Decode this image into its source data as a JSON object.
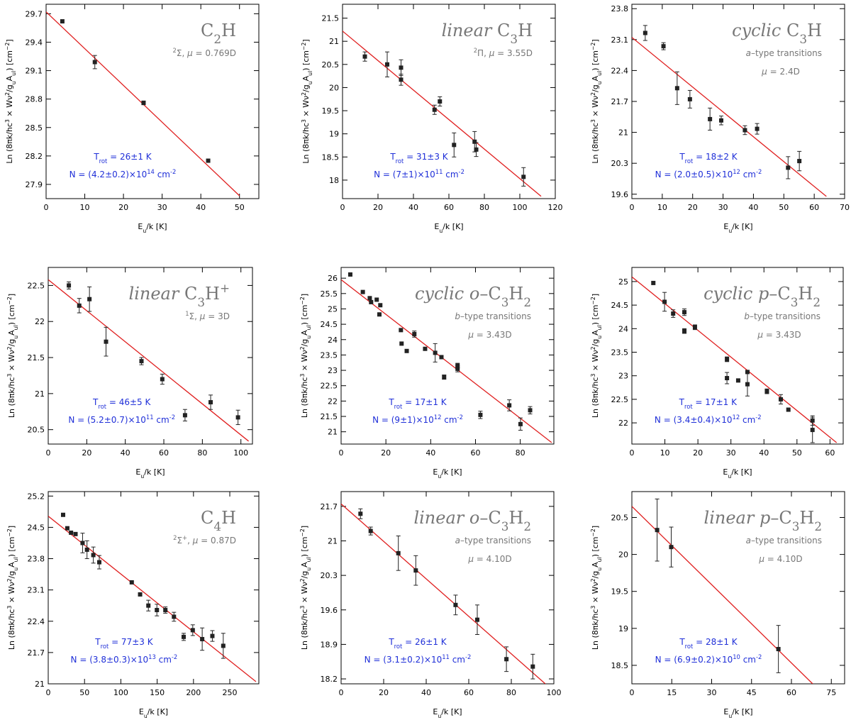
{
  "chart_data": [
    {
      "type": "scatter",
      "title": "C2H",
      "info_lines": [
        "2Σ, μ = 0.769D"
      ],
      "trot": "Trot = 26±1 K",
      "ncol": "N = (4.2±0.2)×10^14 cm^-2",
      "xlabel": "Eu/k [K]",
      "ylabel": "Ln (8πk/hc^3 × Wν^2/(gu Aul)) [cm^-2]",
      "xlim": [
        0,
        55
      ],
      "ylim": [
        27.75,
        29.8
      ],
      "xticks": [
        0,
        10,
        20,
        30,
        40,
        50
      ],
      "yticks": [
        27.9,
        28.2,
        28.5,
        28.8,
        29.1,
        29.4,
        29.7
      ],
      "points": [
        [
          4.2,
          29.62,
          0
        ],
        [
          12.6,
          29.19,
          0.07
        ],
        [
          25.2,
          28.76,
          0.02
        ],
        [
          41.9,
          28.15,
          0
        ]
      ],
      "fit": [
        [
          0,
          29.72
        ],
        [
          50,
          27.78
        ]
      ]
    },
    {
      "type": "scatter",
      "title": "linear C3H",
      "info_lines": [
        "2Π, μ = 3.55D"
      ],
      "trot": "Trot = 31±3 K",
      "ncol": "N = (7±1)×10^11 cm^-2",
      "xlabel": "Eu/k [K]",
      "ylabel": "Ln (8πk/hc^3 × Wν^2/(gu Aul)) [cm^-2]",
      "xlim": [
        0,
        120
      ],
      "ylim": [
        17.6,
        21.8
      ],
      "xticks": [
        0,
        20,
        40,
        60,
        80,
        100,
        120
      ],
      "yticks": [
        18,
        18.5,
        19,
        19.5,
        20,
        20.5,
        21,
        21.5
      ],
      "points": [
        [
          12.6,
          20.67,
          0.1
        ],
        [
          25.2,
          20.5,
          0.27
        ],
        [
          33.0,
          20.43,
          0.17
        ],
        [
          33.0,
          20.17,
          0.12
        ],
        [
          51.9,
          19.52,
          0.1
        ],
        [
          54.9,
          19.7,
          0.1
        ],
        [
          62.9,
          18.76,
          0.26
        ],
        [
          74.5,
          18.83,
          0.22
        ],
        [
          75.4,
          18.66,
          0.15
        ],
        [
          102.1,
          18.07,
          0.2
        ]
      ],
      "fit": [
        [
          0,
          21.22
        ],
        [
          112,
          17.65
        ]
      ]
    },
    {
      "type": "scatter",
      "title": "cyclic C3H",
      "info_lines": [
        "a-type transitions",
        "μ = 2.4D"
      ],
      "trot": "Trot = 18±2 K",
      "ncol": "N = (2.0±0.5)×10^12 cm^-2",
      "xlabel": "Eu/k [K]",
      "ylabel": "Ln (8πk/hc^3 × Wν^2/(gu Aul)) [cm^-2]",
      "xlim": [
        0,
        70
      ],
      "ylim": [
        19.5,
        23.9
      ],
      "xticks": [
        0,
        10,
        20,
        30,
        40,
        50,
        60,
        70
      ],
      "yticks": [
        19.6,
        20.3,
        21,
        21.7,
        22.4,
        23.1,
        23.8
      ],
      "points": [
        [
          4.4,
          23.25,
          0.17
        ],
        [
          10.4,
          22.95,
          0.08
        ],
        [
          14.9,
          22.0,
          0.37
        ],
        [
          19.1,
          21.75,
          0.2
        ],
        [
          25.7,
          21.3,
          0.25
        ],
        [
          29.4,
          21.27,
          0.1
        ],
        [
          37.2,
          21.05,
          0.1
        ],
        [
          41.2,
          21.08,
          0.12
        ],
        [
          51.4,
          20.2,
          0.25
        ],
        [
          55.1,
          20.35,
          0.22
        ]
      ],
      "fit": [
        [
          0,
          23.15
        ],
        [
          64,
          19.55
        ]
      ]
    },
    {
      "type": "scatter",
      "title": "linear C3H+",
      "info_lines": [
        "1Σ, μ = 3D"
      ],
      "trot": "Trot = 46±5 K",
      "ncol": "N = (5.2±0.7)×10^11 cm^-2",
      "xlabel": "Eu/k [K]",
      "ylabel": "Ln (8πk/hc^3 × Wν^2/(gu Aul)) [cm^-2]",
      "xlim": [
        0,
        106
      ],
      "ylim": [
        20.3,
        22.75
      ],
      "xticks": [
        0,
        20,
        40,
        60,
        80,
        100
      ],
      "yticks": [
        20.5,
        21,
        21.5,
        22,
        22.5
      ],
      "points": [
        [
          10.7,
          22.5,
          0.05
        ],
        [
          16.1,
          22.22,
          0.1
        ],
        [
          21.4,
          22.31,
          0.17
        ],
        [
          30.0,
          21.72,
          0.2
        ],
        [
          48.4,
          21.45,
          0.05
        ],
        [
          59.2,
          21.2,
          0.07
        ],
        [
          71.0,
          20.7,
          0.08
        ],
        [
          84.3,
          20.88,
          0.1
        ],
        [
          98.5,
          20.67,
          0.1
        ]
      ],
      "fit": [
        [
          0,
          22.58
        ],
        [
          104,
          20.34
        ]
      ]
    },
    {
      "type": "scatter",
      "title": "cyclic o-C3H2",
      "info_lines": [
        "b-type transitions",
        "μ = 3.43D"
      ],
      "trot": "Trot = 17±1 K",
      "ncol": "N = (9±1)×10^12 cm^-2",
      "xlabel": "Eu/k [K]",
      "ylabel": "Ln (8πk/hc^3 × Wν^2/(gu Aul)) [cm^-2]",
      "xlim": [
        0,
        95
      ],
      "ylim": [
        20.6,
        26.35
      ],
      "xticks": [
        0,
        20,
        40,
        60,
        80
      ],
      "yticks": [
        21,
        21.5,
        22,
        22.5,
        23,
        23.5,
        24,
        24.5,
        25,
        25.5,
        26
      ],
      "points": [
        [
          4.1,
          26.12,
          0
        ],
        [
          9.7,
          25.55,
          0
        ],
        [
          12.8,
          25.35,
          0
        ],
        [
          13.4,
          25.22,
          0
        ],
        [
          15.9,
          25.3,
          0
        ],
        [
          17.1,
          24.82,
          0
        ],
        [
          17.5,
          25.12,
          0
        ],
        [
          26.7,
          24.31,
          0
        ],
        [
          27.0,
          23.87,
          0
        ],
        [
          29.3,
          23.63,
          0
        ],
        [
          32.7,
          24.18,
          0.1
        ],
        [
          37.5,
          23.7,
          0
        ],
        [
          42.0,
          23.57,
          0.3
        ],
        [
          44.8,
          23.43,
          0
        ],
        [
          46.0,
          22.78,
          0.07
        ],
        [
          52.0,
          23.15,
          0.08
        ],
        [
          52.0,
          23.05,
          0.1
        ],
        [
          62.2,
          21.55,
          0.12
        ],
        [
          75.1,
          21.86,
          0.18
        ],
        [
          80.1,
          21.25,
          0.2
        ],
        [
          84.4,
          21.7,
          0.12
        ]
      ],
      "fit": [
        [
          0,
          25.95
        ],
        [
          94,
          20.65
        ]
      ]
    },
    {
      "type": "scatter",
      "title": "cyclic p-C3H2",
      "info_lines": [
        "b-type transitions",
        "μ = 3.43D"
      ],
      "trot": "Trot = 17±1 K",
      "ncol": "N = (3.4±0.4)×10^12 cm^-2",
      "xlabel": "Eu/k [K]",
      "ylabel": "Ln (8πk/hc^3 × Wν^2/(gu Aul)) [cm^-2]",
      "xlim": [
        0,
        64
      ],
      "ylim": [
        21.55,
        25.3
      ],
      "xticks": [
        0,
        10,
        20,
        30,
        40,
        50,
        60
      ],
      "yticks": [
        22,
        22.5,
        23,
        23.5,
        24,
        24.5,
        25
      ],
      "points": [
        [
          6.5,
          24.97,
          0
        ],
        [
          9.9,
          24.57,
          0.2
        ],
        [
          12.5,
          24.32,
          0.08
        ],
        [
          15.9,
          24.35,
          0.07
        ],
        [
          15.9,
          23.95,
          0.05
        ],
        [
          19.1,
          24.03,
          0.05
        ],
        [
          28.8,
          23.35,
          0.05
        ],
        [
          28.8,
          22.95,
          0.12
        ],
        [
          32.2,
          22.9,
          0
        ],
        [
          35.0,
          23.08,
          0
        ],
        [
          35.0,
          22.82,
          0.25
        ],
        [
          40.9,
          22.67,
          0.05
        ],
        [
          45.1,
          22.5,
          0.1
        ],
        [
          47.4,
          22.28,
          0
        ],
        [
          54.7,
          22.05,
          0.1
        ],
        [
          54.7,
          21.85,
          0.27
        ]
      ],
      "fit": [
        [
          0,
          25.1
        ],
        [
          62,
          21.58
        ]
      ]
    },
    {
      "type": "scatter",
      "title": "C4H",
      "info_lines": [
        "2Σ+, μ = 0.87D"
      ],
      "trot": "Trot = 77±3 K",
      "ncol": "N = (3.8±0.3)×10^13 cm^-2",
      "xlabel": "Eu/k [K]",
      "ylabel": "Ln (8πk/hc^3 × Wν^2/(gu Aul)) [cm^-2]",
      "xlim": [
        0,
        290
      ],
      "ylim": [
        21.0,
        25.3
      ],
      "xticks": [
        0,
        50,
        100,
        150,
        200,
        250
      ],
      "yticks": [
        21,
        21.7,
        22.4,
        23.1,
        23.8,
        24.5,
        25.2
      ],
      "points": [
        [
          20.5,
          24.78,
          0
        ],
        [
          26.3,
          24.48,
          0
        ],
        [
          31.4,
          24.38,
          0
        ],
        [
          37.6,
          24.35,
          0
        ],
        [
          47.3,
          24.15,
          0.22
        ],
        [
          53.4,
          24.0,
          0.2
        ],
        [
          62.1,
          23.88,
          0.18
        ],
        [
          70.3,
          23.72,
          0.15
        ],
        [
          115.0,
          23.27,
          0
        ],
        [
          126.5,
          23.0,
          0
        ],
        [
          137.9,
          22.75,
          0.12
        ],
        [
          149.6,
          22.65,
          0.13
        ],
        [
          161.3,
          22.65,
          0.07
        ],
        [
          173.1,
          22.5,
          0.1
        ],
        [
          186.5,
          22.05,
          0.08
        ],
        [
          199.0,
          22.2,
          0.12
        ],
        [
          212.0,
          22.0,
          0.25
        ],
        [
          226.0,
          22.07,
          0.12
        ],
        [
          241.0,
          21.85,
          0.28
        ]
      ],
      "fit": [
        [
          0,
          24.75
        ],
        [
          286,
          21.05
        ]
      ]
    },
    {
      "type": "scatter",
      "title": "linear o-C3H2",
      "info_lines": [
        "a-type transitions",
        "μ = 4.10D"
      ],
      "trot": "Trot = 26±1 K",
      "ncol": "N = (3.1±0.2)×10^11 cm^-2",
      "xlabel": "Eu/k [K]",
      "ylabel": "Ln (8πk/hc^3 × Wν^2/(gu Aul)) [cm^-2]",
      "xlim": [
        0,
        100
      ],
      "ylim": [
        18.1,
        22.0
      ],
      "xticks": [
        0,
        20,
        40,
        60,
        80,
        100
      ],
      "yticks": [
        18.2,
        18.9,
        19.6,
        20.3,
        21,
        21.7
      ],
      "points": [
        [
          9.1,
          21.55,
          0.1
        ],
        [
          13.9,
          21.2,
          0.08
        ],
        [
          26.9,
          20.75,
          0.35
        ],
        [
          35.1,
          20.4,
          0.3
        ],
        [
          53.8,
          19.7,
          0.2
        ],
        [
          64.0,
          19.4,
          0.3
        ],
        [
          77.7,
          18.6,
          0.25
        ],
        [
          90.1,
          18.45,
          0.25
        ]
      ],
      "fit": [
        [
          0,
          21.75
        ],
        [
          96,
          18.1
        ]
      ]
    },
    {
      "type": "scatter",
      "title": "linear p-C3H2",
      "info_lines": [
        "a-type transitions",
        "μ = 4.10D"
      ],
      "trot": "Trot = 28±1 K",
      "ncol": "N = (6.9±0.2)×10^10 cm^-2",
      "xlabel": "Eu/k [K]",
      "ylabel": "Ln (8πk/hc^3 × Wν^2/(gu Aul)) [cm^-2]",
      "xlim": [
        0,
        80
      ],
      "ylim": [
        18.25,
        20.85
      ],
      "xticks": [
        0,
        15,
        30,
        45,
        60,
        75
      ],
      "yticks": [
        18.5,
        19,
        19.5,
        20,
        20.5
      ],
      "points": [
        [
          9.5,
          20.33,
          0.42
        ],
        [
          14.8,
          20.1,
          0.27
        ],
        [
          55.1,
          18.72,
          0.32
        ]
      ],
      "fit": [
        [
          0,
          20.65
        ],
        [
          68,
          18.25
        ]
      ]
    }
  ],
  "colors": {
    "fit_line": "#e02020",
    "annotation": "#1f2fd8",
    "species_label": "#777777",
    "axis": "#000000",
    "marker": "#222222"
  }
}
